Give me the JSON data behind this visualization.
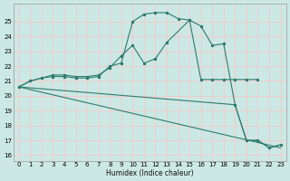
{
  "xlabel": "Humidex (Indice chaleur)",
  "bg_color": "#cce8e4",
  "grid_color": "#f5c8c8",
  "line_color": "#2d7b6e",
  "xlim": [
    -0.5,
    23.5
  ],
  "ylim": [
    15.6,
    26.2
  ],
  "yticks": [
    16,
    17,
    18,
    19,
    20,
    21,
    22,
    23,
    24,
    25
  ],
  "xticks": [
    0,
    1,
    2,
    3,
    4,
    5,
    6,
    7,
    8,
    9,
    10,
    11,
    12,
    13,
    14,
    15,
    16,
    17,
    18,
    19,
    20,
    21,
    22,
    23
  ],
  "line1_x": [
    0,
    1,
    2,
    3,
    4,
    5,
    6,
    7,
    8,
    9,
    10,
    11,
    12,
    13,
    14,
    15,
    16,
    17,
    18,
    19,
    20,
    21,
    22,
    23
  ],
  "line1_y": [
    20.6,
    21.0,
    21.2,
    21.3,
    21.3,
    21.2,
    21.2,
    21.3,
    22.0,
    22.2,
    25.0,
    25.5,
    25.6,
    25.6,
    25.2,
    25.1,
    24.7,
    23.4,
    23.5,
    19.4,
    17.0,
    17.0,
    16.5,
    16.7
  ],
  "line2_x": [
    0,
    1,
    2,
    3,
    4,
    5,
    6,
    7,
    8,
    9,
    10,
    11,
    12,
    13,
    15,
    16,
    17,
    18,
    19,
    20,
    21
  ],
  "line2_y": [
    20.6,
    21.0,
    21.2,
    21.4,
    21.4,
    21.3,
    21.3,
    21.4,
    21.9,
    22.7,
    23.4,
    22.2,
    22.5,
    23.6,
    25.1,
    21.1,
    21.1,
    21.1,
    21.1,
    21.1,
    21.1
  ],
  "line3_x": [
    0,
    23
  ],
  "line3_y": [
    20.6,
    16.5
  ],
  "line3b_x": [
    0,
    19,
    20,
    21,
    22,
    23
  ],
  "line3b_y": [
    20.6,
    19.4,
    17.0,
    17.0,
    16.5,
    16.7
  ]
}
